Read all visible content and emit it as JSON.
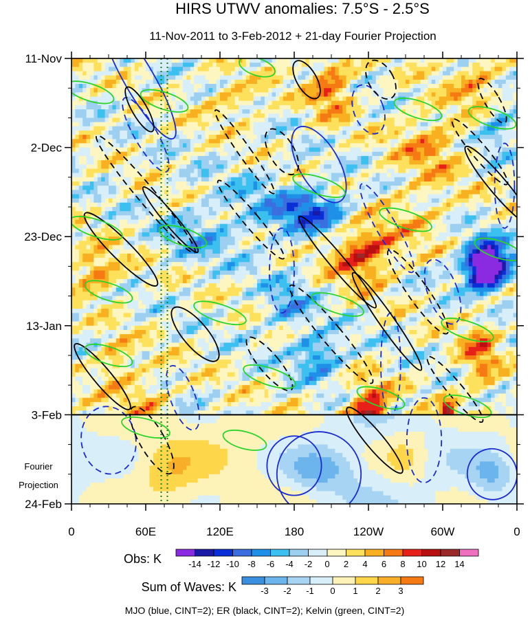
{
  "chart_data": {
    "type": "heatmap",
    "title": "HIRS UTWV anomalies: 7.5°S - 2.5°S",
    "subtitle": "11-Nov-2011 to 3-Feb-2012 + 21-day Fourier Projection",
    "x_tick_labels": [
      "0",
      "60E",
      "120E",
      "180",
      "120W",
      "60W",
      "0"
    ],
    "x_tick_degrees": [
      0,
      60,
      120,
      180,
      240,
      300,
      360
    ],
    "x_range_degrees": [
      0,
      360
    ],
    "y_tick_labels": [
      "11-Nov",
      "2-Dec",
      "23-Dec",
      "13-Jan",
      "3-Feb",
      "24-Feb"
    ],
    "y_tick_days": [
      0,
      21,
      42,
      63,
      84,
      105
    ],
    "y_range_days": [
      0,
      105
    ],
    "observation_end_day": 84,
    "projection_label_line1": "Fourier",
    "projection_label_line2": "Projection",
    "reference_lines_degrees": [
      72.5,
      77.5
    ],
    "obs_colorbar": {
      "label": "Obs: K",
      "levels": [
        -14,
        -12,
        -10,
        -8,
        -6,
        -4,
        -2,
        0,
        2,
        4,
        6,
        8,
        10,
        12,
        14
      ],
      "level_labels": [
        "-14",
        "-12",
        "-10",
        "-8",
        "-6",
        "-4",
        "-2",
        "0",
        "2",
        "4",
        "6",
        "8",
        "10",
        "12",
        "14"
      ],
      "colors": [
        "#8a2be2",
        "#1a1aa6",
        "#0a2ed8",
        "#3b6fe0",
        "#1e90e8",
        "#3cc0f0",
        "#9dd0f0",
        "#d8eef8",
        "#fdf6c0",
        "#fde05c",
        "#f8b020",
        "#f57a14",
        "#e8201a",
        "#b81010",
        "#9a2a2a",
        "#f070c0"
      ]
    },
    "waves_colorbar": {
      "label": "Sum of Waves: K",
      "levels": [
        -3,
        -2,
        -1,
        0,
        1,
        2,
        3
      ],
      "level_labels": [
        "-3",
        "-2",
        "-1",
        "0",
        "1",
        "2",
        "3"
      ],
      "colors": [
        "#3b8fe0",
        "#6cb4ec",
        "#a8d4f4",
        "#d8eef8",
        "#fdf3b8",
        "#fdd64a",
        "#f9ae2a",
        "#f57a14"
      ]
    },
    "contour_note": "MJO (blue, CINT=2); ER (black, CINT=2); Kelvin (green, CINT=2)",
    "series": [
      {
        "name": "MJO",
        "color": "#1a2ad0",
        "cint": 2
      },
      {
        "name": "ER",
        "color": "#000000",
        "cint": 2
      },
      {
        "name": "Kelvin",
        "color": "#2ad42a",
        "cint": 2
      }
    ]
  }
}
